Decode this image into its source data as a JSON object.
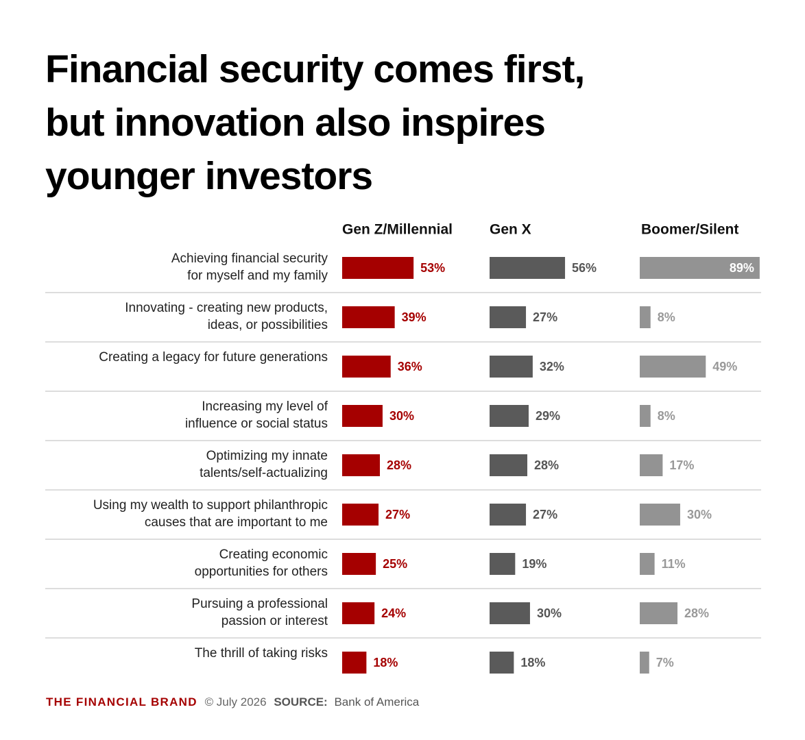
{
  "chart_data": {
    "type": "bar",
    "orientation": "horizontal",
    "title": [
      "Financial security comes first,",
      "but innovation also inspires",
      "younger investors"
    ],
    "categories": [
      [
        "Achieving financial security",
        "for myself and my family"
      ],
      [
        "Innovating - creating new products,",
        "ideas, or possibilities"
      ],
      [
        "Creating a legacy for future generations"
      ],
      [
        "Increasing my level of",
        "influence or social status"
      ],
      [
        "Optimizing my innate",
        "talents/self-actualizing"
      ],
      [
        "Using my wealth to support philanthropic",
        "causes that are important to me"
      ],
      [
        "Creating economic",
        "opportunities for others"
      ],
      [
        "Pursuing a professional",
        "passion or interest"
      ],
      [
        "The thrill of taking risks"
      ]
    ],
    "series": [
      {
        "name": "Gen Z/Millennial",
        "color": "#a50000",
        "label_color": "#a50000",
        "values": [
          53,
          39,
          36,
          30,
          28,
          27,
          25,
          24,
          18
        ],
        "value_labels": [
          "53%",
          "39%",
          "36%",
          "30%",
          "28%",
          "27%",
          "25%",
          "24%",
          "18%"
        ]
      },
      {
        "name": "Gen X",
        "color": "#5a5a5a",
        "label_color": "#555555",
        "values": [
          56,
          27,
          32,
          29,
          28,
          27,
          19,
          30,
          18
        ],
        "value_labels": [
          "56%",
          "27%",
          "32%",
          "29%",
          "28%",
          "27%",
          "19%",
          "30%",
          "18%"
        ]
      },
      {
        "name": "Boomer/Silent",
        "color": "#939393",
        "label_color": "#999999",
        "values": [
          89,
          8,
          49,
          8,
          17,
          30,
          11,
          28,
          7
        ],
        "value_labels": [
          "89%",
          "8%",
          "49%",
          "8%",
          "17%",
          "30%",
          "11%",
          "28%",
          "7%"
        ]
      }
    ],
    "brand": "THE FINANCIAL BRAND",
    "date": "© July 2026",
    "source_label": "SOURCE:",
    "source": "Bank of America"
  }
}
